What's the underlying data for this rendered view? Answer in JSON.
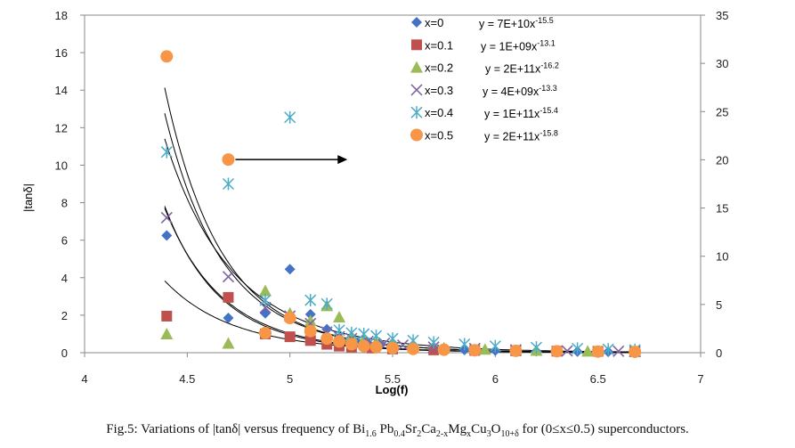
{
  "chart_data": {
    "type": "scatter",
    "xlabel": "Log(f)",
    "ylabel": "|tanδ|",
    "xlim": [
      4,
      7
    ],
    "ylim": [
      0,
      18
    ],
    "ylim_right": [
      0,
      35
    ],
    "x_ticks": [
      4,
      4.5,
      5,
      5.5,
      6,
      6.5,
      7
    ],
    "y_ticks": [
      0,
      2,
      4,
      6,
      8,
      10,
      12,
      14,
      16,
      18
    ],
    "y_ticks_right": [
      0,
      5,
      10,
      15,
      20,
      25,
      30,
      35
    ],
    "grid": false,
    "legend_position": "top-right",
    "series": [
      {
        "name": "x=0",
        "marker": "diamond",
        "color": "#4472C4",
        "fit": "y = 7E+10x-15.5",
        "fit_base": "y = 7E+10x",
        "fit_exp": "-15.5",
        "fit_coef": 70000000000.0,
        "fit_power": -15.5,
        "points": [
          [
            4.4,
            6.25
          ],
          [
            4.7,
            1.85
          ],
          [
            4.88,
            2.1
          ],
          [
            5.0,
            4.45
          ],
          [
            5.1,
            2.05
          ],
          [
            5.18,
            1.25
          ],
          [
            5.24,
            0.8
          ],
          [
            5.28,
            0.6
          ],
          [
            5.33,
            0.55
          ],
          [
            5.38,
            0.5
          ],
          [
            5.44,
            0.4
          ],
          [
            5.5,
            0.35
          ],
          [
            5.6,
            0.28
          ],
          [
            5.7,
            0.22
          ],
          [
            5.85,
            0.15
          ],
          [
            6.0,
            0.11
          ],
          [
            6.2,
            0.08
          ],
          [
            6.4,
            0.06
          ],
          [
            6.55,
            0.05
          ],
          [
            6.68,
            0.05
          ]
        ]
      },
      {
        "name": "x=0.1",
        "marker": "square",
        "color": "#C0504D",
        "fit": "y = 1E+09x-13.1",
        "fit_base": "y = 1E+09x",
        "fit_exp": "-13.1",
        "fit_coef": 1000000000.0,
        "fit_power": -13.1,
        "points": [
          [
            4.4,
            1.95
          ],
          [
            4.7,
            2.95
          ],
          [
            4.88,
            1.0
          ],
          [
            5.0,
            0.85
          ],
          [
            5.1,
            0.65
          ],
          [
            5.18,
            0.45
          ],
          [
            5.24,
            0.35
          ],
          [
            5.3,
            0.3
          ],
          [
            5.4,
            0.25
          ],
          [
            5.5,
            0.2
          ],
          [
            5.7,
            0.15
          ],
          [
            5.9,
            0.12
          ],
          [
            6.1,
            0.1
          ],
          [
            6.3,
            0.08
          ],
          [
            6.5,
            0.07
          ],
          [
            6.68,
            0.06
          ]
        ]
      },
      {
        "name": "x=0.2",
        "marker": "triangle",
        "color": "#9BBB59",
        "fit": "y = 2E+11x-16.2",
        "fit_base": "y = 2E+11x",
        "fit_exp": "-16.2",
        "fit_coef": 200000000000.0,
        "fit_power": -16.2,
        "points": [
          [
            4.4,
            1.0
          ],
          [
            4.7,
            0.5
          ],
          [
            4.88,
            3.3
          ],
          [
            5.0,
            2.1
          ],
          [
            5.1,
            1.7
          ],
          [
            5.18,
            2.5
          ],
          [
            5.24,
            1.9
          ],
          [
            5.3,
            0.9
          ],
          [
            5.36,
            0.7
          ],
          [
            5.42,
            0.55
          ],
          [
            5.5,
            0.45
          ],
          [
            5.6,
            0.35
          ],
          [
            5.75,
            0.25
          ],
          [
            5.95,
            0.18
          ],
          [
            6.2,
            0.12
          ],
          [
            6.45,
            0.08
          ],
          [
            6.68,
            0.06
          ]
        ]
      },
      {
        "name": "x=0.3",
        "marker": "x",
        "color": "#8064A2",
        "fit": "y = 4E+09x-13.3",
        "fit_base": "y = 4E+09x",
        "fit_exp": "-13.3",
        "fit_coef": 4000000000.0,
        "fit_power": -13.3,
        "points": [
          [
            4.4,
            7.2
          ],
          [
            4.7,
            4.05
          ],
          [
            4.88,
            2.4
          ],
          [
            5.0,
            1.95
          ],
          [
            5.1,
            1.55
          ],
          [
            5.18,
            1.1
          ],
          [
            5.24,
            0.85
          ],
          [
            5.3,
            0.75
          ],
          [
            5.38,
            0.6
          ],
          [
            5.46,
            0.5
          ],
          [
            5.55,
            0.4
          ],
          [
            5.7,
            0.3
          ],
          [
            5.9,
            0.22
          ],
          [
            6.1,
            0.15
          ],
          [
            6.35,
            0.1
          ],
          [
            6.6,
            0.08
          ],
          [
            6.68,
            0.07
          ]
        ]
      },
      {
        "name": "x=0.4",
        "marker": "asterisk",
        "color": "#4BACC6",
        "fit": "y = 1E+11x-15.4",
        "fit_base": "y = 1E+11x",
        "fit_exp": "-15.4",
        "fit_coef": 100000000000.0,
        "fit_power": -15.4,
        "points": [
          [
            4.4,
            10.7
          ],
          [
            4.7,
            9.0
          ],
          [
            4.88,
            2.8
          ],
          [
            5.0,
            12.55
          ],
          [
            5.1,
            2.8
          ],
          [
            5.18,
            2.6
          ],
          [
            5.24,
            1.2
          ],
          [
            5.3,
            1.05
          ],
          [
            5.36,
            1.0
          ],
          [
            5.42,
            0.9
          ],
          [
            5.5,
            0.75
          ],
          [
            5.6,
            0.65
          ],
          [
            5.7,
            0.55
          ],
          [
            5.85,
            0.45
          ],
          [
            6.0,
            0.35
          ],
          [
            6.2,
            0.28
          ],
          [
            6.4,
            0.22
          ],
          [
            6.55,
            0.18
          ],
          [
            6.68,
            0.15
          ]
        ]
      },
      {
        "name": "x=0.5",
        "marker": "circle",
        "color": "#F79646",
        "fit": "y = 2E+11x-15.8",
        "fit_base": "y = 2E+11x",
        "fit_exp": "-15.8",
        "fit_coef": 200000000000.0,
        "fit_power": -15.8,
        "points": [
          [
            4.4,
            15.8
          ],
          [
            4.7,
            10.3
          ],
          [
            4.88,
            1.05
          ],
          [
            5.0,
            1.85
          ],
          [
            5.1,
            1.15
          ],
          [
            5.18,
            0.75
          ],
          [
            5.24,
            0.6
          ],
          [
            5.3,
            0.45
          ],
          [
            5.36,
            0.35
          ],
          [
            5.42,
            0.3
          ],
          [
            5.5,
            0.25
          ],
          [
            5.6,
            0.2
          ],
          [
            5.75,
            0.16
          ],
          [
            5.9,
            0.13
          ],
          [
            6.1,
            0.1
          ],
          [
            6.3,
            0.08
          ],
          [
            6.5,
            0.06
          ],
          [
            6.68,
            0.05
          ]
        ]
      }
    ],
    "arrow": {
      "from_x": 4.7,
      "to_x": 5.28,
      "y": 10.3,
      "note": "points to right axis"
    }
  },
  "caption": {
    "p1": "Fig.5: Variations of |tanδ| versus frequency of Bi",
    "s1": "1.6",
    "p2": " Pb",
    "s2": "0.4",
    "p3": "Sr",
    "s3": "2",
    "p4": "Ca",
    "s4": "2-x",
    "p5": "Mg",
    "s5": "x",
    "p6": "Cu",
    "s6": "3",
    "p7": "O",
    "s7": "10+δ",
    "p8": " for (0≤x≤0.5) superconductors."
  }
}
